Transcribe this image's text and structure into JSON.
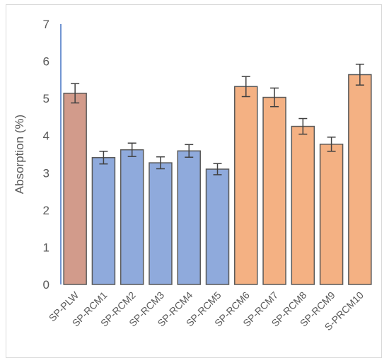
{
  "chart_data": {
    "type": "bar",
    "title": "",
    "xlabel": "",
    "ylabel": "Absorption (%)",
    "ylim": [
      0,
      7
    ],
    "yticks": [
      0,
      1,
      2,
      3,
      4,
      5,
      6,
      7
    ],
    "grid": false,
    "legend": "none",
    "categories": [
      "SP-PLW",
      "SP-RCM1",
      "SP-RCM2",
      "SP-RCM3",
      "SP-RCM4",
      "SP-RCM5",
      "SP-RCM6",
      "SP-RCM7",
      "SP-RCM8",
      "SP-RCM9",
      "S-PRCM10"
    ],
    "values": [
      5.14,
      3.41,
      3.62,
      3.27,
      3.59,
      3.1,
      5.32,
      5.03,
      4.25,
      3.77,
      5.64
    ],
    "error": [
      0.26,
      0.17,
      0.18,
      0.16,
      0.17,
      0.15,
      0.27,
      0.25,
      0.21,
      0.19,
      0.28
    ],
    "colors": [
      "#d29b8b",
      "#8faadc",
      "#8faadc",
      "#8faadc",
      "#8faadc",
      "#8faadc",
      "#f4b183",
      "#f4b183",
      "#f4b183",
      "#f4b183",
      "#f4b183"
    ],
    "bar_edge_color": "#595959",
    "axis_color": "#4472c4"
  }
}
